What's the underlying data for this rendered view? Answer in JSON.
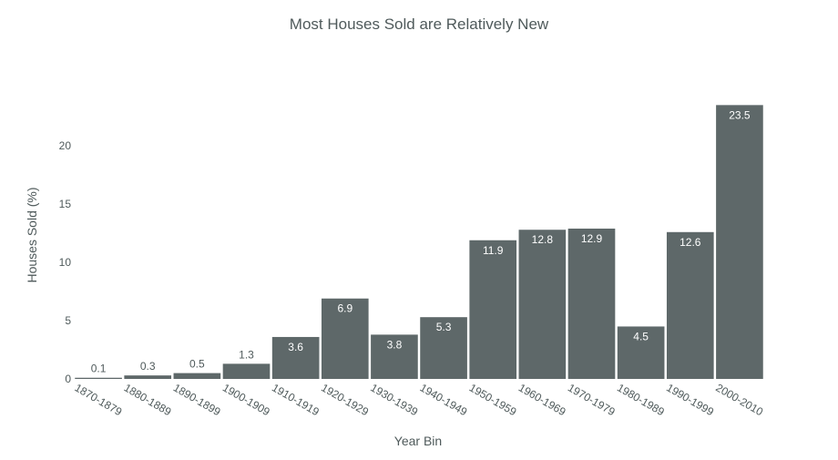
{
  "chart_data": {
    "type": "bar",
    "title": "Most Houses Sold are Relatively New",
    "xlabel": "Year Bin",
    "ylabel": "Houses Sold (%)",
    "categories": [
      "1870-1879",
      "1880-1889",
      "1890-1899",
      "1900-1909",
      "1910-1919",
      "1920-1929",
      "1930-1939",
      "1940-1949",
      "1950-1959",
      "1960-1969",
      "1970-1979",
      "1980-1989",
      "1990-1999",
      "2000-2010"
    ],
    "values": [
      0.1,
      0.3,
      0.5,
      1.3,
      3.6,
      6.9,
      3.8,
      5.3,
      11.9,
      12.8,
      12.9,
      4.5,
      12.6,
      23.5
    ],
    "data_labels": [
      "0.1",
      "0.3",
      "0.5",
      "1.3",
      "3.6",
      "6.9",
      "3.8",
      "5.3",
      "11.9",
      "12.8",
      "12.9",
      "4.5",
      "12.6",
      "23.5"
    ],
    "ylim": [
      0,
      24.7
    ],
    "yticks": [
      0,
      5,
      10,
      15,
      20
    ],
    "grid": false,
    "bar_color": "#5e6869",
    "text_color": "#4f5a5b",
    "outside_label_color": "#4f5a5b",
    "inside_label_color": "#ffffff"
  }
}
